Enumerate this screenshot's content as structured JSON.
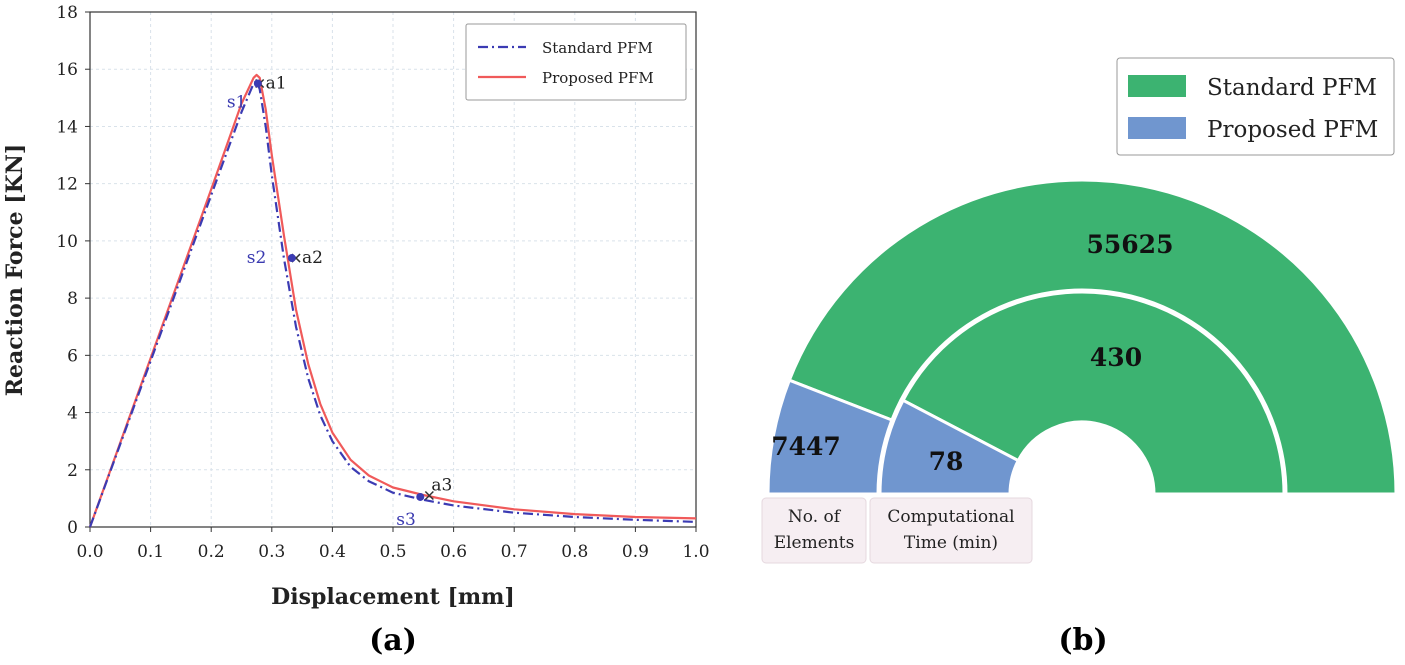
{
  "colors": {
    "standard_line": "#3b3bb3",
    "proposed_line": "#f05a5a",
    "standard_fill": "#3cb371",
    "proposed_fill": "#7096cf",
    "label_box": "#f6eef2"
  },
  "chart_data": [
    {
      "panel": "(a)",
      "type": "line",
      "xlabel": "Displacement [mm]",
      "ylabel": "Reaction Force [KN]",
      "xlim": [
        0.0,
        1.0
      ],
      "ylim": [
        0,
        18
      ],
      "xticks": [
        "0.0",
        "0.1",
        "0.2",
        "0.3",
        "0.4",
        "0.5",
        "0.6",
        "0.7",
        "0.8",
        "0.9",
        "1.0"
      ],
      "yticks": [
        "0",
        "2",
        "4",
        "6",
        "8",
        "10",
        "12",
        "14",
        "16",
        "18"
      ],
      "grid": true,
      "legend_position": "top-right",
      "series": [
        {
          "name": "Standard PFM",
          "style": "dashdot",
          "x": [
            0.0,
            0.05,
            0.1,
            0.15,
            0.2,
            0.25,
            0.27,
            0.275,
            0.28,
            0.29,
            0.3,
            0.32,
            0.34,
            0.36,
            0.38,
            0.4,
            0.43,
            0.46,
            0.5,
            0.55,
            0.6,
            0.7,
            0.8,
            0.9,
            1.0
          ],
          "y": [
            0.0,
            2.9,
            5.8,
            8.7,
            11.6,
            14.5,
            15.5,
            15.6,
            15.3,
            14.0,
            12.3,
            9.4,
            7.0,
            5.2,
            3.9,
            3.0,
            2.1,
            1.6,
            1.2,
            0.95,
            0.75,
            0.5,
            0.35,
            0.25,
            0.18
          ]
        },
        {
          "name": "Proposed PFM",
          "style": "solid",
          "x": [
            0.0,
            0.05,
            0.1,
            0.15,
            0.2,
            0.25,
            0.27,
            0.275,
            0.28,
            0.29,
            0.3,
            0.32,
            0.34,
            0.36,
            0.38,
            0.4,
            0.43,
            0.46,
            0.5,
            0.55,
            0.6,
            0.7,
            0.8,
            0.9,
            1.0
          ],
          "y": [
            0.0,
            2.95,
            5.9,
            8.85,
            11.8,
            14.8,
            15.7,
            15.8,
            15.7,
            14.6,
            13.0,
            10.2,
            7.6,
            5.7,
            4.3,
            3.3,
            2.35,
            1.8,
            1.38,
            1.12,
            0.9,
            0.62,
            0.45,
            0.35,
            0.3
          ]
        }
      ],
      "annotations": [
        {
          "label": "a1",
          "series": "Proposed PFM",
          "marker": "x",
          "x": 0.28,
          "y": 15.5
        },
        {
          "label": "a2",
          "series": "Proposed PFM",
          "marker": "x",
          "x": 0.34,
          "y": 9.4
        },
        {
          "label": "a3",
          "series": "Proposed PFM",
          "marker": "x",
          "x": 0.56,
          "y": 1.1
        },
        {
          "label": "s1",
          "series": "Standard PFM",
          "marker": "dot",
          "x": 0.277,
          "y": 15.5
        },
        {
          "label": "s2",
          "series": "Standard PFM",
          "marker": "dot",
          "x": 0.333,
          "y": 9.4
        },
        {
          "label": "s3",
          "series": "Standard PFM",
          "marker": "dot",
          "x": 0.545,
          "y": 1.05
        }
      ]
    },
    {
      "panel": "(b)",
      "type": "pie",
      "subtype": "nested half-donut",
      "legend": [
        "Standard PFM",
        "Proposed PFM"
      ],
      "legend_position": "top-right",
      "rings": [
        {
          "category": "No. of Elements",
          "values": [
            {
              "name": "Standard PFM",
              "value": 55625
            },
            {
              "name": "Proposed PFM",
              "value": 7447
            }
          ]
        },
        {
          "category": "Computational Time (min)",
          "values": [
            {
              "name": "Standard PFM",
              "value": 430
            },
            {
              "name": "Proposed PFM",
              "value": 78
            }
          ]
        }
      ],
      "category_labels": [
        [
          "No. of",
          "Elements"
        ],
        [
          "Computational",
          "Time (min)"
        ]
      ]
    }
  ]
}
